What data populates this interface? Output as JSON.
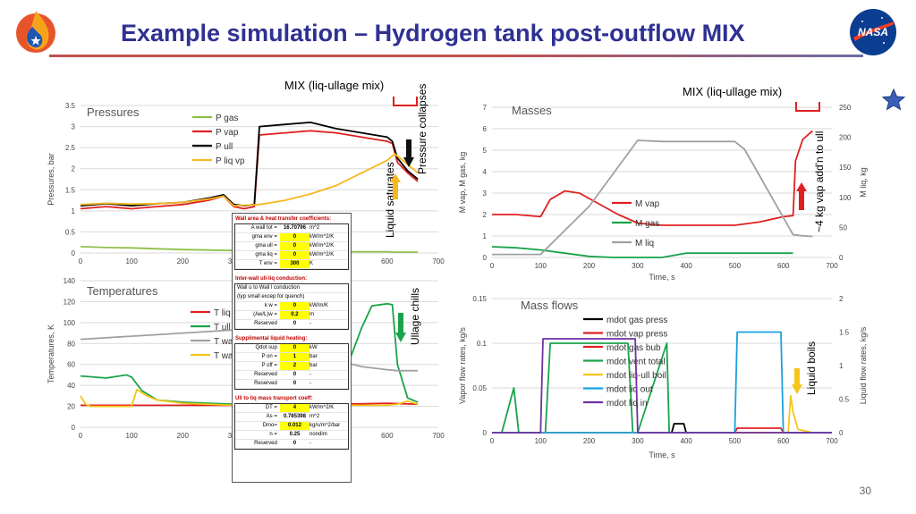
{
  "header": {
    "title": "Example simulation – Hydrogen tank post-outflow MIX",
    "page_number": "30",
    "colors": {
      "title": "#2e3192",
      "accent": "#c0504d"
    },
    "logo_left_icon": "flame-drop-logo-icon",
    "logo_right_icon": "nasa-meatball-logo-icon",
    "star_icon": "blue-star-icon"
  },
  "annotations": {
    "mix_left": "MIX (liq-ullage mix)",
    "mix_right": "MIX (liq-ullage mix)",
    "pressure_collapses": "Pressure collapses",
    "liquid_saturates": "Liquid saturates",
    "ullage_chills": "Ullage chills",
    "vap_added": "~4 kg vap add'n to ull",
    "liquid_boils": "Liquid boils"
  },
  "table": {
    "sections": [
      {
        "title": "Wall area & heat transfer coefficients:",
        "rows": [
          [
            "A wall tot =",
            "16.70796",
            "m^2"
          ],
          [
            "gma env =",
            "0",
            "kW/m^2/K"
          ],
          [
            "gma ull =",
            "0",
            "kW/m^2/K"
          ],
          [
            "gma liq =",
            "0",
            "kW/m^2/K"
          ],
          [
            "T env =",
            "300",
            "K"
          ]
        ]
      },
      {
        "title": "Inter-wall ull-liq conduction:",
        "rows": [
          [
            "Wall u to Wall l conduction",
            "",
            ""
          ],
          [
            "(typ small excep for quench)",
            "",
            ""
          ],
          [
            "k w =",
            "0",
            "kW/m/K"
          ],
          [
            "(Aw/L)w =",
            "0.2",
            "m"
          ],
          [
            "Reserved",
            "0",
            "-"
          ]
        ]
      },
      {
        "title": "Supplimental liquid heating:",
        "rows": [
          [
            "Qdot sup",
            "0",
            "kW"
          ],
          [
            "P on =",
            "1",
            "bar"
          ],
          [
            "P off =",
            "2",
            "bar"
          ],
          [
            "Reserved",
            "0",
            "-"
          ],
          [
            "Reserved",
            "0",
            "-"
          ]
        ]
      },
      {
        "title": "Ull to liq mass transport coeff:",
        "rows": [
          [
            "DT =",
            "4",
            "kW/m^2/K"
          ],
          [
            "As =",
            "0.785398",
            "m^2"
          ],
          [
            "Dmo=",
            "0.012",
            "kg/s/m^2/bar"
          ],
          [
            "n =",
            "0.25",
            "nondim"
          ],
          [
            "Reserved",
            "0",
            "-"
          ]
        ]
      }
    ]
  },
  "chart_data": [
    {
      "type": "line",
      "title": "Pressures",
      "xlabel": "",
      "ylabel": "Pressures, bar",
      "xlim": [
        0,
        700
      ],
      "ylim": [
        0,
        3.5
      ],
      "xticks": [
        0,
        100,
        200,
        300,
        400,
        500,
        600,
        700
      ],
      "yticks": [
        0,
        0.5,
        1,
        1.5,
        2,
        2.5,
        3,
        3.5
      ],
      "legend_position": "top-left",
      "grid": true,
      "series": [
        {
          "name": "P gas",
          "color": "#8fbf4a",
          "x": [
            0,
            50,
            100,
            150,
            200,
            250,
            300,
            350,
            400,
            450,
            500,
            550,
            600,
            615,
            660
          ],
          "y": [
            0.15,
            0.13,
            0.12,
            0.1,
            0.08,
            0.07,
            0.06,
            0.05,
            0.04,
            0.04,
            0.03,
            0.03,
            0.03,
            0.02,
            0.02
          ]
        },
        {
          "name": "P vap",
          "color": "#e02020",
          "x": [
            0,
            50,
            100,
            150,
            200,
            250,
            280,
            300,
            320,
            340,
            350,
            400,
            450,
            500,
            550,
            600,
            610,
            620,
            640,
            660
          ],
          "y": [
            1.05,
            1.1,
            1.05,
            1.1,
            1.15,
            1.25,
            1.35,
            1.1,
            1.05,
            1.1,
            2.8,
            2.85,
            2.9,
            2.85,
            2.75,
            2.65,
            2.6,
            2.15,
            1.9,
            1.7
          ]
        },
        {
          "name": "P ull",
          "color": "#000000",
          "x": [
            0,
            50,
            100,
            150,
            200,
            250,
            280,
            300,
            320,
            340,
            350,
            400,
            450,
            500,
            550,
            600,
            610,
            620,
            640,
            660
          ],
          "y": [
            1.12,
            1.17,
            1.12,
            1.17,
            1.2,
            1.3,
            1.38,
            1.15,
            1.12,
            1.15,
            3.0,
            3.05,
            3.1,
            2.95,
            2.85,
            2.75,
            2.65,
            2.25,
            1.95,
            1.75
          ]
        },
        {
          "name": "P liq vp",
          "color": "#f5b820",
          "x": [
            0,
            50,
            100,
            150,
            200,
            250,
            280,
            300,
            350,
            400,
            450,
            500,
            550,
            600,
            615,
            640,
            660
          ],
          "y": [
            1.15,
            1.18,
            1.16,
            1.17,
            1.2,
            1.28,
            1.35,
            1.12,
            1.15,
            1.25,
            1.4,
            1.6,
            1.9,
            2.2,
            2.35,
            2.1,
            1.9
          ]
        }
      ]
    },
    {
      "type": "line",
      "title": "Masses",
      "xlabel": "Time, s",
      "ylabel": "M vap, M gas, kg",
      "y2label": "M liq, kg",
      "xlim": [
        0,
        700
      ],
      "ylim": [
        0,
        7
      ],
      "y2lim": [
        0,
        250
      ],
      "xticks": [
        0,
        100,
        200,
        300,
        400,
        500,
        600,
        700
      ],
      "yticks": [
        0,
        1,
        2,
        3,
        4,
        5,
        6,
        7
      ],
      "y2ticks": [
        0,
        50,
        100,
        150,
        200,
        250
      ],
      "legend_position": "center-left",
      "grid": true,
      "series": [
        {
          "name": "M vap",
          "color": "#e02020",
          "axis": "left",
          "x": [
            0,
            50,
            100,
            120,
            150,
            180,
            220,
            260,
            300,
            350,
            400,
            450,
            500,
            550,
            600,
            620,
            625,
            640,
            660
          ],
          "y": [
            2.0,
            2.0,
            1.9,
            2.7,
            3.1,
            3.0,
            2.5,
            2.0,
            1.6,
            1.5,
            1.5,
            1.5,
            1.5,
            1.65,
            1.9,
            1.95,
            4.5,
            5.5,
            5.9
          ]
        },
        {
          "name": "M gas",
          "color": "#1aa34a",
          "axis": "left",
          "x": [
            0,
            50,
            100,
            150,
            200,
            250,
            300,
            350,
            400,
            450,
            500,
            550,
            600,
            620
          ],
          "y": [
            0.5,
            0.45,
            0.35,
            0.2,
            0.05,
            0.0,
            0.0,
            0.0,
            0.2,
            0.2,
            0.2,
            0.2,
            0.2,
            0.2
          ]
        },
        {
          "name": "M liq",
          "color": "#a0a0a0",
          "axis": "right",
          "x": [
            0,
            50,
            100,
            200,
            300,
            350,
            400,
            450,
            500,
            520,
            620,
            640,
            660
          ],
          "y": [
            5,
            5,
            5,
            85,
            195,
            193,
            193,
            193,
            193,
            180,
            38,
            36,
            35
          ]
        }
      ]
    },
    {
      "type": "line",
      "title": "Temperatures",
      "xlabel": "",
      "ylabel": "Temperatures, K",
      "xlim": [
        0,
        700
      ],
      "ylim": [
        0,
        140
      ],
      "xticks": [
        0,
        100,
        200,
        300,
        400,
        500,
        600,
        700
      ],
      "yticks": [
        0,
        20,
        40,
        60,
        80,
        100,
        120,
        140
      ],
      "legend_position": "top-center",
      "grid": true,
      "series": [
        {
          "name": "T liq",
          "color": "#e02020",
          "x": [
            0,
            100,
            200,
            300,
            400,
            500,
            600,
            660
          ],
          "y": [
            21,
            21,
            21,
            21,
            21,
            22,
            23,
            22
          ]
        },
        {
          "name": "T ull",
          "color": "#1aa34a",
          "x": [
            0,
            50,
            90,
            100,
            120,
            150,
            200,
            250,
            300,
            400,
            450,
            500,
            550,
            570,
            600,
            610,
            620,
            640,
            660
          ],
          "y": [
            49,
            47,
            50,
            48,
            35,
            26,
            24,
            23,
            22,
            22,
            24,
            30,
            95,
            116,
            118,
            117,
            60,
            28,
            24
          ]
        },
        {
          "name": "T wall ull",
          "color": "#a0a0a0",
          "x": [
            0,
            100,
            200,
            300,
            400,
            450,
            500,
            550,
            600,
            620,
            660
          ],
          "y": [
            84,
            87,
            90,
            93,
            84,
            72,
            64,
            58,
            55,
            54,
            54
          ]
        },
        {
          "name": "T wall l",
          "color": "#f5c518",
          "x": [
            0,
            10,
            20,
            100,
            110,
            130,
            150,
            200,
            300,
            400,
            500,
            600,
            620,
            640,
            660
          ],
          "y": [
            30,
            22,
            20,
            20,
            36,
            30,
            26,
            23,
            21,
            21,
            21,
            21,
            22,
            25,
            22
          ]
        }
      ]
    },
    {
      "type": "line",
      "title": "Mass flows",
      "xlabel": "Time, s",
      "ylabel": "Vapor flow rates, kg/s",
      "y2label": "Liquid flow rates, kg/s",
      "xlim": [
        0,
        700
      ],
      "ylim": [
        0,
        0.15
      ],
      "y2lim": [
        0,
        2
      ],
      "xticks": [
        0,
        100,
        200,
        300,
        400,
        500,
        600,
        700
      ],
      "yticks": [
        0,
        0.05,
        0.1,
        0.15
      ],
      "y2ticks": [
        0,
        0.5,
        1,
        1.5,
        2
      ],
      "legend_position": "top-center",
      "grid": true,
      "series": [
        {
          "name": "mdot gas press",
          "color": "#000000",
          "axis": "left",
          "x": [
            0,
            370,
            375,
            395,
            400,
            700
          ],
          "y": [
            0,
            0,
            0.01,
            0.01,
            0,
            0
          ]
        },
        {
          "name": "mdot vap press",
          "color": "#e02020",
          "axis": "left",
          "x": [
            0,
            500,
            505,
            595,
            600,
            700
          ],
          "y": [
            0,
            0,
            0.005,
            0.005,
            0,
            0
          ]
        },
        {
          "name": "mdot gas bub",
          "color": "#e02020",
          "axis": "left",
          "x": [
            0,
            700
          ],
          "y": [
            0,
            0
          ]
        },
        {
          "name": "mdot vent total",
          "color": "#1aa34a",
          "axis": "left",
          "x": [
            0,
            20,
            45,
            55,
            70,
            110,
            120,
            280,
            290,
            300,
            360,
            365,
            375,
            700
          ],
          "y": [
            0,
            0,
            0.05,
            0,
            0,
            0,
            0.1,
            0.1,
            0,
            0,
            0.1,
            0,
            0,
            0
          ]
        },
        {
          "name": "mdot liq-ull boil",
          "color": "#f5c518",
          "axis": "right",
          "x": [
            0,
            610,
            615,
            620,
            630,
            660,
            700
          ],
          "y": [
            0,
            0,
            0.55,
            0.3,
            0.05,
            0,
            0
          ]
        },
        {
          "name": "mdot liq out",
          "color": "#1ba0e0",
          "axis": "right",
          "x": [
            0,
            500,
            505,
            595,
            600,
            700
          ],
          "y": [
            0,
            0,
            1.5,
            1.5,
            0,
            0
          ]
        },
        {
          "name": "mdot liq in",
          "color": "#7030a0",
          "axis": "right",
          "x": [
            0,
            100,
            105,
            295,
            300,
            700
          ],
          "y": [
            0,
            0,
            1.4,
            1.4,
            0,
            0
          ]
        }
      ]
    }
  ]
}
